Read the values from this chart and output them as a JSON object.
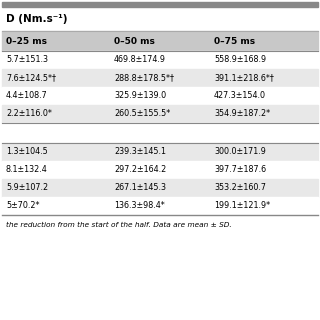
{
  "title_line": "D (Nm.s⁻¹)",
  "col_headers": [
    "0–25 ms",
    "0–50 ms",
    "0–75 ms"
  ],
  "section1_rows": [
    [
      "5.7±151.3",
      "469.8±174.9",
      "558.9±168.9"
    ],
    [
      "7.6±124.5*†",
      "288.8±178.5*†",
      "391.1±218.6*†"
    ],
    [
      "4.4±108.7",
      "325.9±139.0",
      "427.3±154.0"
    ],
    [
      "2.2±116.0*",
      "260.5±155.5*",
      "354.9±187.2*"
    ]
  ],
  "section2_rows": [
    [
      "1.3±104.5",
      "239.3±145.1",
      "300.0±171.9"
    ],
    [
      "8.1±132.4",
      "297.2±164.2",
      "397.7±187.6"
    ],
    [
      "5.9±107.2",
      "267.1±145.3",
      "353.2±160.7"
    ],
    [
      "5±70.2*",
      "136.3±98.4*",
      "199.1±121.9*"
    ]
  ],
  "footnote": "the reduction from the start of the half. Data are mean ± SD.",
  "bg_light": "#e8e8e8",
  "bg_white": "#f5f5f5",
  "bg_very_white": "#ffffff",
  "header_bg": "#c8c8c8",
  "bar_color": "#888888",
  "font_size": 5.8,
  "header_font_size": 6.5,
  "title_font_size": 7.5
}
